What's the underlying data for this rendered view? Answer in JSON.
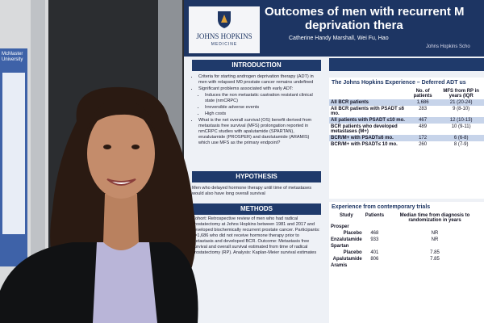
{
  "side_poster": {
    "title": "McMaster University"
  },
  "poster": {
    "logo": {
      "name": "JOHNS HOPKINS",
      "sub": "MEDICINE"
    },
    "title": [
      "Outcomes of men with recurrent M",
      "deprivation thera"
    ],
    "authors": "Catherine Handy Marshall, Wei Fu, Hao",
    "affiliation": "Johns Hopkins Scho",
    "introduction": {
      "heading": "INTRODUCTION",
      "items": [
        "Criteria for starting androgen deprivation therapy (ADT) in men with relapsed M0 prostate cancer remains undefined",
        "Significant problems associated with early ADT:",
        "Induces the non metastatic castration resistant clinical state (nmCRPC)",
        "Irreversible adverse events",
        "High costs",
        "What is the net overall survival (OS) benefit derived from metastasis free survival (MFS) prolongation reported in nmCRPC studies with apalutamide (SPARTAN), enzalutamide (PROSPER) and darolutamide (ARAMIS) which use MFS as the primary endpoint?"
      ]
    },
    "hypothesis": {
      "heading": "HYPOTHESIS",
      "text": "Men who delayed hormone therapy until time of metastases would also have long overall survival"
    },
    "methods": {
      "heading": "METHODS",
      "text": "Cohort: Retrospective review of men who had radical prostatectomy at Johns Hopkins between 1981 and 2017 and developed biochemically recurrent prostate cancer. Participants: n=1,686 who did not receive hormone therapy prior to metastasis and developed BCR. Outcome: Metastasis free survival and overall survival estimated from time of radical prostatectomy (RP). Analysis: Kaplan-Meier survival estimates"
    },
    "jh_table": {
      "title": "The Johns Hopkins Experience – Deferred ADT us",
      "columns": [
        "No. of patients",
        "MFS from RP in years (IQR"
      ],
      "rows": [
        [
          "All BCR patients",
          "1,686",
          "21 (20-24)"
        ],
        [
          "All BCR patients with PSADT ≤6 mo.",
          "283",
          "9 (8-10)"
        ],
        [
          "All patients with PSADT ≤10 mo.",
          "467",
          "12 (10-13)"
        ],
        [
          "BCR patients who developed metastases (M+)",
          "489",
          "10 (9-11)"
        ],
        [
          "BCR/M+ with PSADT≤6 mo.",
          "172",
          "6 (6-8)"
        ],
        [
          "BCR/M+ with PSADT≤ 10 mo.",
          "260",
          "8 (7-9)"
        ]
      ]
    },
    "trials": {
      "title": "Experience from contemporary trials",
      "columns": [
        "Study",
        "Patients",
        "Median time from diagnosis to randomization in years"
      ],
      "rows": [
        {
          "study": "Prosper"
        },
        {
          "arm": "Placebo",
          "patients": "468",
          "median": "NR"
        },
        {
          "arm": "Enzalutamide",
          "patients": "933",
          "median": "NR"
        },
        {
          "study": "Spartan"
        },
        {
          "arm": "Placebo",
          "patients": "401",
          "median": "7.85"
        },
        {
          "arm": "Apalutamide",
          "patients": "806",
          "median": "7.85"
        },
        {
          "study": "Aramis"
        }
      ]
    }
  }
}
